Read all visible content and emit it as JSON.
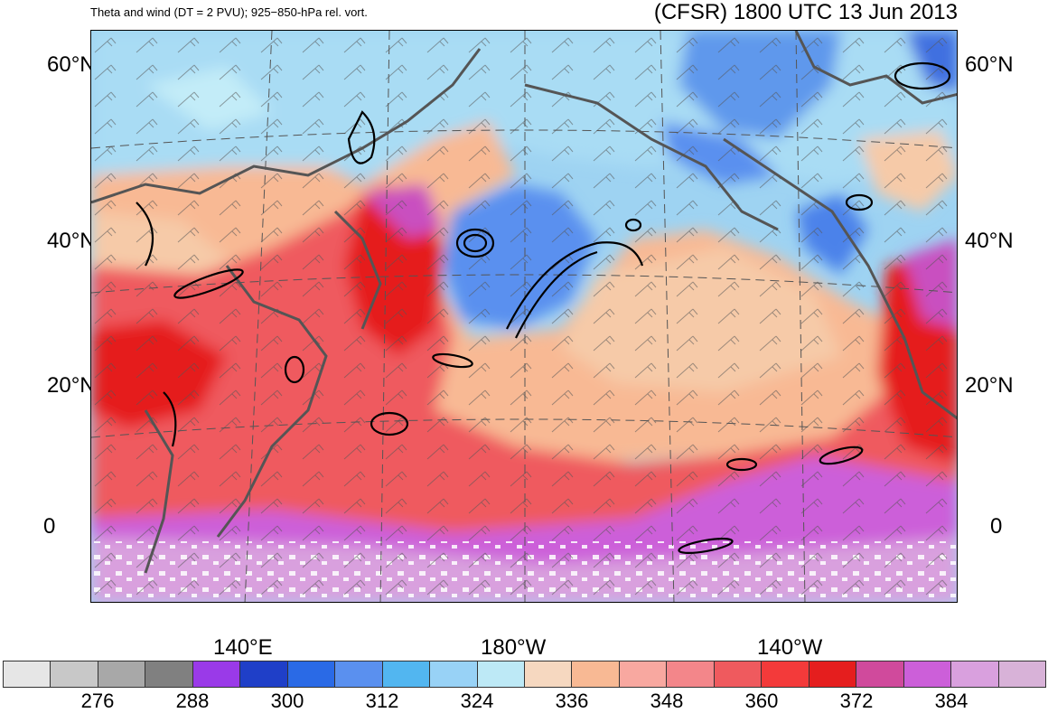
{
  "title": {
    "left": "Theta and wind (DT = 2 PVU); 925−850-hPa rel. vort.",
    "right": "(CFSR) 1800 UTC 13 Jun 2013"
  },
  "map": {
    "lat_labels": [
      "60°N",
      "40°N",
      "20°N",
      "0"
    ],
    "lon_labels": [
      "140°E",
      "180°W",
      "140°W"
    ],
    "colors": {
      "cold": "#3f6fe0",
      "cool": "#9ed3f2",
      "mild": "#f7c6a4",
      "warm": "#f0473f",
      "hot": "#c94fc0",
      "veryhot": "#d7a6d8",
      "contour": "#000000",
      "coast": "#555555"
    }
  },
  "colorbar": {
    "colors": [
      "#e6e6e6",
      "#c8c8c8",
      "#a8a8a8",
      "#808080",
      "#9a3ae8",
      "#1f3fc8",
      "#2a6ae6",
      "#5a90ef",
      "#52b6f0",
      "#98d2f6",
      "#bde9f6",
      "#f6d8c0",
      "#f8b994",
      "#f8a8a0",
      "#f3868a",
      "#ef5a5e",
      "#f33a3a",
      "#e51e1e",
      "#d04a9c",
      "#cc5fd9",
      "#d9a0de",
      "#d8b2d8"
    ],
    "labels": [
      "276",
      "288",
      "300",
      "312",
      "324",
      "336",
      "348",
      "360",
      "372",
      "384"
    ]
  }
}
